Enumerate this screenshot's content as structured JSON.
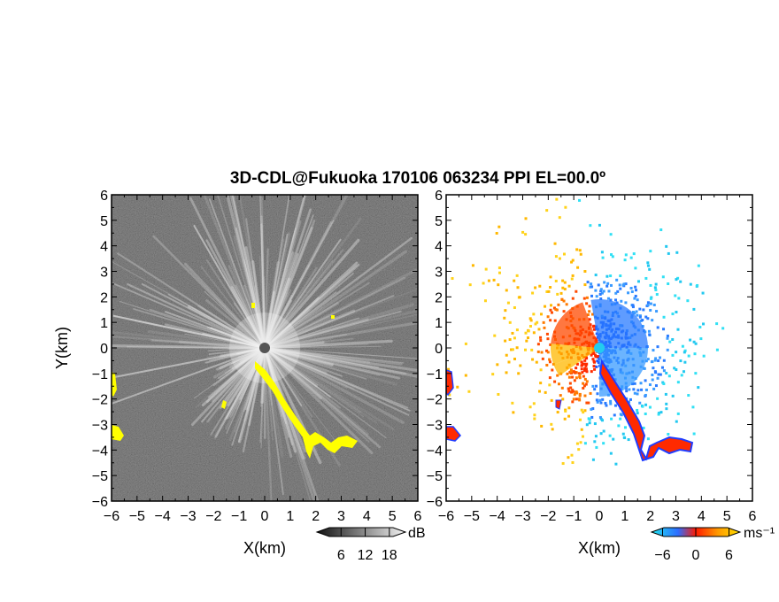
{
  "chart_data": [
    {
      "type": "heatmap",
      "panel": "reflectivity",
      "title": "3D-CDL@Fukuoka 170106 063234 PPI EL=00.0º",
      "xlabel": "X(km)",
      "ylabel": "Y(km)",
      "xlim": [
        -6,
        6
      ],
      "ylim": [
        -6,
        6
      ],
      "x_ticks": [
        "-6",
        "-5",
        "-4",
        "-3",
        "-2",
        "-1",
        "0",
        "1",
        "2",
        "3",
        "4",
        "5",
        "6"
      ],
      "y_ticks": [
        "-6",
        "-5",
        "-4",
        "-3",
        "-2",
        "-1",
        "0",
        "1",
        "2",
        "3",
        "4",
        "5",
        "6"
      ],
      "colorbar": {
        "label": "dB",
        "ticks": [
          "6",
          "12",
          "18"
        ],
        "values": [
          6,
          12,
          18
        ],
        "range": [
          0,
          22
        ]
      },
      "colors": {
        "background": "#2a2a2a",
        "beam": "#e8e8e8",
        "clutter": "#ffff00"
      }
    },
    {
      "type": "heatmap",
      "panel": "doppler-velocity",
      "xlabel": "X(km)",
      "xlim": [
        -6,
        6
      ],
      "ylim": [
        -6,
        6
      ],
      "x_ticks": [
        "-6",
        "-5",
        "-4",
        "-3",
        "-2",
        "-1",
        "0",
        "1",
        "2",
        "3",
        "4",
        "5",
        "6"
      ],
      "y_ticks": [
        "-6",
        "-5",
        "-4",
        "-3",
        "-2",
        "-1",
        "0",
        "1",
        "2",
        "3",
        "4",
        "5",
        "6"
      ],
      "colorbar": {
        "label": "ms⁻¹",
        "ticks": [
          "−6",
          "0",
          "6"
        ],
        "values": [
          -6,
          0,
          6
        ],
        "range": [
          -8,
          8
        ]
      },
      "colors": {
        "toward": "#1f5bff",
        "away": "#ff2a00",
        "weak_toward": "#22ddee",
        "weak_away": "#ffd21a"
      }
    }
  ]
}
